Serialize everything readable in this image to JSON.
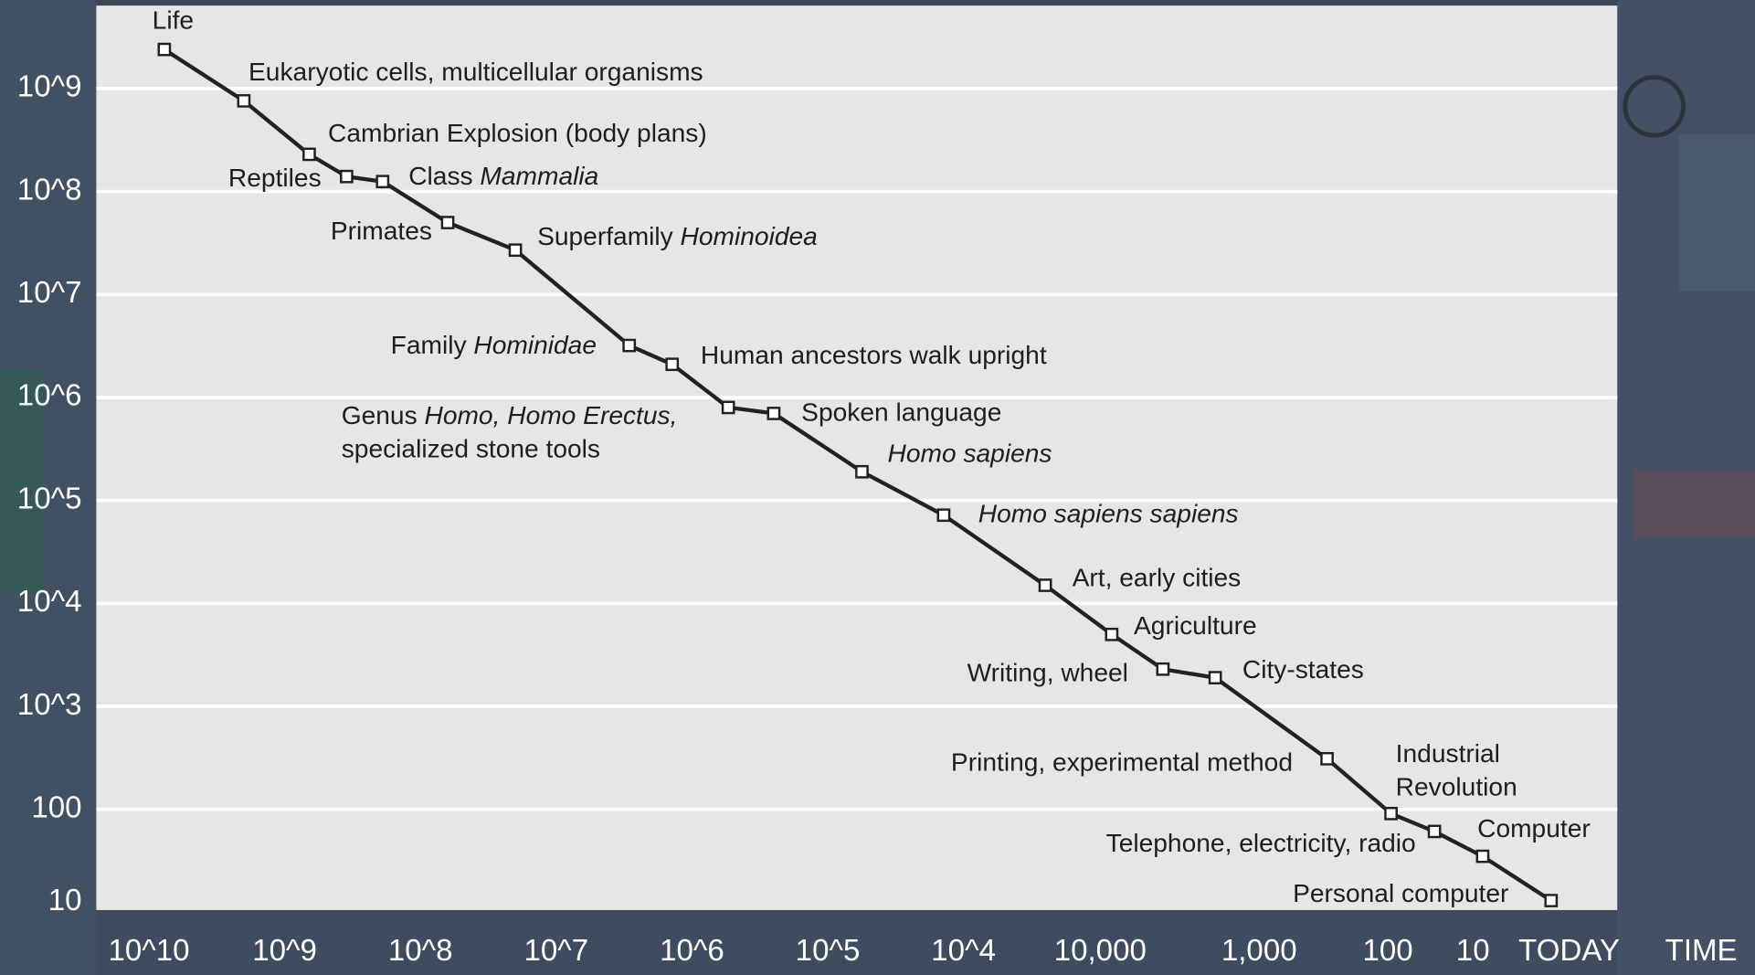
{
  "chart_data": {
    "type": "line",
    "xlabel": "TIME",
    "log_x": true,
    "log_y": true,
    "grid": true,
    "xlim": [
      24400000000,
      0.153
    ],
    "ylim": [
      10,
      6400000000
    ],
    "xticks": [
      {
        "value": 10000000000,
        "label": "10^10"
      },
      {
        "value": 1000000000,
        "label": "10^9"
      },
      {
        "value": 100000000,
        "label": "10^8"
      },
      {
        "value": 10000000,
        "label": "10^7"
      },
      {
        "value": 1000000,
        "label": "10^6"
      },
      {
        "value": 100000,
        "label": "10^5"
      },
      {
        "value": 10000,
        "label": "10^4"
      }
    ],
    "x_extra_labels": [
      "10,000",
      "1,000",
      "100",
      "10",
      "TODAY"
    ],
    "yticks": [
      {
        "value": 1000000000,
        "label": "10^9"
      },
      {
        "value": 100000000,
        "label": "10^8"
      },
      {
        "value": 10000000,
        "label": "10^7"
      },
      {
        "value": 1000000,
        "label": "10^6"
      },
      {
        "value": 100000,
        "label": "10^5"
      },
      {
        "value": 10000,
        "label": "10^4"
      },
      {
        "value": 1000,
        "label": "10^3"
      },
      100,
      10
    ],
    "series": [
      {
        "color": "#222222",
        "x": [
          7700000000,
          2000000000,
          660000000,
          350000000,
          190000000,
          63000000,
          20000000,
          2900000,
          1400000,
          540000,
          250000,
          56000,
          14000,
          2500,
          810,
          340,
          140,
          21,
          7.1,
          3.4,
          1.5,
          0.47
        ],
        "values": [
          2400000000,
          760000000,
          230000000,
          140000000,
          125000000,
          50000000,
          27000000,
          3200000,
          2100000,
          800000,
          700000,
          190000,
          72000,
          15000,
          5000,
          2300,
          1900,
          310,
          91,
          61,
          35,
          13
        ]
      }
    ],
    "point_labels": [
      [
        [
          "Life"
        ]
      ],
      [
        [
          "Eukaryotic cells, multicellular organisms"
        ]
      ],
      [
        [
          "Cambrian Explosion (body plans)"
        ]
      ],
      [
        [
          "Reptiles"
        ]
      ],
      [
        [
          "Class ",
          {
            "text": "Mammalia",
            "italic": true
          }
        ]
      ],
      [
        [
          "Primates"
        ]
      ],
      [
        [
          "Superfamily ",
          {
            "text": "Hominoidea",
            "italic": true
          }
        ]
      ],
      [
        [
          "Family ",
          {
            "text": "Hominidae",
            "italic": true
          }
        ]
      ],
      [
        [
          "Human ancestors walk upright"
        ]
      ],
      [
        [
          "Genus ",
          {
            "text": "Homo, Homo Erectus,",
            "italic": true
          }
        ],
        [
          "specialized stone tools"
        ]
      ],
      [
        [
          "Spoken language"
        ]
      ],
      [
        [
          {
            "text": "Homo sapiens",
            "italic": true
          }
        ]
      ],
      [
        [
          {
            "text": "Homo sapiens sapiens",
            "italic": true
          }
        ]
      ],
      [
        [
          "Art, early cities"
        ]
      ],
      [
        [
          "Agriculture"
        ]
      ],
      [
        [
          "Writing, wheel"
        ]
      ],
      [
        [
          "City-states"
        ]
      ],
      [
        [
          "Printing, experimental method"
        ]
      ],
      [
        [
          "Industrial"
        ],
        [
          "Revolution"
        ]
      ],
      [
        [
          "Telephone,  electricity, radio"
        ]
      ],
      [
        [
          "Computer"
        ]
      ],
      [
        [
          "Personal computer"
        ]
      ]
    ]
  }
}
